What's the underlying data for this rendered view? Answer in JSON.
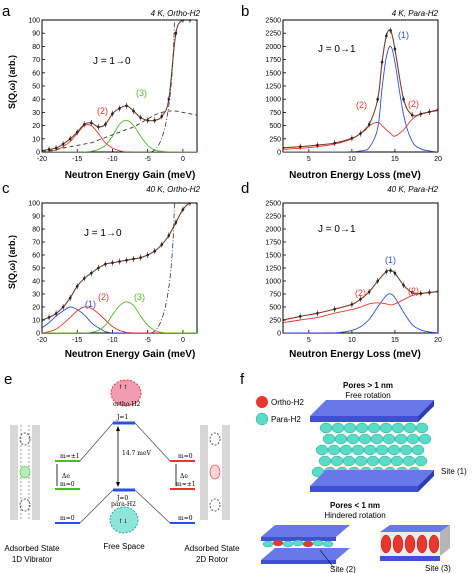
{
  "panels": {
    "a": {
      "letter": "a",
      "title": "4 K, Ortho-H2",
      "transition": "J = 1→0",
      "xlabel": "Neutron Energy Gain (meV)",
      "ylabel": "S(Q,ω) (arb.)",
      "peaks": [
        {
          "text": "(2)",
          "color": "#e8352d"
        },
        {
          "text": "(3)",
          "color": "#4dbb24"
        }
      ]
    },
    "b": {
      "letter": "b",
      "title": "4 K, Para-H2",
      "transition": "J = 0→1",
      "xlabel": "Neutron Energy Loss (meV)",
      "peaks": [
        {
          "text": "(1)",
          "color": "#2f4fe0"
        },
        {
          "text": "(2)",
          "color": "#e8352d"
        },
        {
          "text": "(2)",
          "color": "#e8352d"
        }
      ]
    },
    "c": {
      "letter": "c",
      "title": "40 K, Ortho-H2",
      "transition": "J = 1→0",
      "xlabel": "Neutron Energy Gain (meV)",
      "ylabel": "S(Q,ω) (arb.)",
      "peaks": [
        {
          "text": "(1)",
          "color": "#2f4fe0"
        },
        {
          "text": "(2)",
          "color": "#e8352d"
        },
        {
          "text": "(3)",
          "color": "#4dbb24"
        }
      ]
    },
    "d": {
      "letter": "d",
      "title": "40 K, Para-H2",
      "transition": "J = 0→1",
      "xlabel": "Neutron Energy Loss (meV)",
      "peaks": [
        {
          "text": "(1)",
          "color": "#2f4fe0"
        },
        {
          "text": "(2)",
          "color": "#e8352d"
        },
        {
          "text": "(2)",
          "color": "#e8352d"
        }
      ]
    }
  },
  "panel_e": {
    "letter": "e",
    "ortho": "ortho-H2",
    "para": "para-H2",
    "j1": "J=1",
    "j0": "J=0",
    "gap": "14.7 meV",
    "m_pm1": "m=±1",
    "m_0": "m=0",
    "delta": "Δe",
    "free_space": "Free Space",
    "left_state": "Adsorbed State",
    "left_mode": "1D Vibrator",
    "right_state": "Adsorbed State",
    "right_mode": "2D Rotor"
  },
  "panel_f": {
    "letter": "f",
    "ortho": "Ortho-H2",
    "para": "Para-H2",
    "big_pores": "Pores > 1 nm",
    "free_rot": "Free rotation",
    "small_pores": "Pores < 1 nm",
    "hindered_rot": "Hindered rotation",
    "site1": "Site (1)",
    "site2": "Site (2)",
    "site3": "Site (3)"
  },
  "colors": {
    "blue": "#2f4fe0",
    "red": "#e8352d",
    "green": "#4dbb24",
    "pink": "#f39bb0",
    "cyan": "#58dcc8",
    "slab": "#3f4fd8"
  },
  "chart_data": [
    {
      "panel": "a",
      "type": "line",
      "title": "4 K, Ortho-H2",
      "xlabel": "Neutron Energy Gain (meV)",
      "ylabel": "S(Q,ω) (arb.)",
      "xlim": [
        -20,
        2
      ],
      "ylim": [
        0,
        100
      ],
      "xticks": [
        -20,
        -15,
        -10,
        -5,
        0
      ],
      "yticks": [
        0,
        10,
        20,
        30,
        40,
        50,
        60,
        70,
        80,
        90,
        100
      ],
      "x": [
        -20,
        -19,
        -18,
        -17,
        -16,
        -15,
        -14,
        -13,
        -12,
        -11,
        -10,
        -9,
        -8,
        -7,
        -6,
        -5,
        -4,
        -3,
        -2,
        -1,
        0,
        1,
        2
      ],
      "series": [
        {
          "name": "data",
          "values": [
            1,
            2,
            3,
            6,
            10,
            15,
            21,
            22,
            19,
            21,
            29,
            33,
            35,
            31,
            26,
            24,
            24,
            27,
            40,
            90,
            100,
            100,
            100
          ]
        },
        {
          "name": "(2)",
          "values": [
            0,
            0.5,
            1.5,
            4,
            8,
            14,
            20,
            20,
            14,
            7,
            3,
            1,
            0,
            0,
            0,
            0,
            0,
            0,
            0,
            0,
            0,
            0,
            0
          ]
        },
        {
          "name": "(3)",
          "values": [
            0,
            0,
            0,
            0,
            0,
            0,
            0,
            0.5,
            2,
            5,
            12,
            21,
            24,
            20,
            12,
            5,
            1.5,
            0.5,
            0,
            0,
            0,
            0,
            0
          ]
        },
        {
          "name": "background",
          "values": [
            0.5,
            1,
            2,
            3,
            4,
            5,
            6,
            7,
            9,
            11,
            13,
            15,
            17,
            19,
            22,
            25,
            28,
            30,
            31,
            31,
            30,
            29,
            28
          ]
        }
      ]
    },
    {
      "panel": "b",
      "type": "line",
      "title": "4 K, Para-H2",
      "xlabel": "Neutron Energy Loss (meV)",
      "ylabel": "S(Q,ω) (arb.)",
      "xlim": [
        2,
        20
      ],
      "ylim": [
        0,
        2500
      ],
      "xticks": [
        5,
        10,
        15,
        20
      ],
      "yticks": [
        0,
        250,
        500,
        750,
        1000,
        1250,
        1500,
        1750,
        2000,
        2250,
        2500
      ],
      "x": [
        2,
        4,
        6,
        8,
        10,
        11,
        12,
        13,
        13.5,
        14,
        14.5,
        15,
        16,
        17,
        18,
        19,
        20
      ],
      "series": [
        {
          "name": "data",
          "values": [
            80,
            100,
            130,
            170,
            260,
            350,
            520,
            1000,
            1700,
            2200,
            2300,
            1950,
            1000,
            700,
            720,
            760,
            800
          ]
        },
        {
          "name": "(1)",
          "values": [
            0,
            0,
            0,
            0,
            5,
            20,
            80,
            450,
            1200,
            1800,
            2000,
            1700,
            700,
            200,
            60,
            20,
            0
          ]
        },
        {
          "name": "(2)",
          "values": [
            50,
            70,
            100,
            150,
            250,
            350,
            500,
            560,
            500,
            420,
            350,
            300,
            420,
            620,
            720,
            760,
            780
          ]
        }
      ]
    },
    {
      "panel": "c",
      "type": "line",
      "title": "40 K, Ortho-H2",
      "xlabel": "Neutron Energy Gain (meV)",
      "ylabel": "S(Q,ω) (arb.)",
      "xlim": [
        -20,
        2
      ],
      "ylim": [
        0,
        100
      ],
      "xticks": [
        -20,
        -15,
        -10,
        -5,
        0
      ],
      "yticks": [
        0,
        10,
        20,
        30,
        40,
        50,
        60,
        70,
        80,
        90,
        100
      ],
      "x": [
        -20,
        -19,
        -18,
        -17,
        -16,
        -15,
        -14,
        -13,
        -12,
        -11,
        -10,
        -9,
        -8,
        -7,
        -6,
        -5,
        -4,
        -3,
        -2,
        -1,
        0,
        1,
        2
      ],
      "series": [
        {
          "name": "data",
          "values": [
            10,
            12,
            15,
            20,
            27,
            36,
            42,
            46,
            50,
            53,
            54,
            55,
            56,
            57,
            58,
            60,
            63,
            68,
            75,
            85,
            95,
            100,
            100
          ]
        },
        {
          "name": "(1)",
          "values": [
            4,
            8,
            13,
            17,
            20,
            18,
            14,
            8,
            4,
            1,
            0,
            0,
            0,
            0,
            0,
            0,
            0,
            0,
            0,
            0,
            0,
            0,
            0
          ]
        },
        {
          "name": "(2)",
          "values": [
            0,
            1,
            3,
            7,
            12,
            17,
            20,
            19,
            15,
            10,
            5,
            2,
            0.5,
            0,
            0,
            0,
            0,
            0,
            0,
            0,
            0,
            0,
            0
          ]
        },
        {
          "name": "(3)",
          "values": [
            0,
            0,
            0,
            0,
            0,
            0,
            0,
            0.5,
            2,
            6,
            14,
            21,
            24,
            21,
            13,
            6,
            2,
            0.5,
            0,
            0,
            0,
            0,
            0
          ]
        }
      ]
    },
    {
      "panel": "d",
      "type": "line",
      "title": "40 K, Para-H2",
      "xlabel": "Neutron Energy Loss (meV)",
      "ylabel": "S(Q,ω) (arb.)",
      "xlim": [
        2,
        20
      ],
      "ylim": [
        0,
        2500
      ],
      "xticks": [
        5,
        10,
        15,
        20
      ],
      "yticks": [
        0,
        250,
        500,
        750,
        1000,
        1250,
        1500,
        1750,
        2000,
        2250,
        2500
      ],
      "x": [
        2,
        4,
        6,
        8,
        10,
        11,
        12,
        13,
        14,
        14.5,
        15,
        16,
        17,
        18,
        19,
        20
      ],
      "series": [
        {
          "name": "data",
          "values": [
            250,
            320,
            380,
            460,
            550,
            650,
            790,
            1000,
            1180,
            1200,
            1150,
            920,
            780,
            760,
            780,
            800
          ]
        },
        {
          "name": "(1)",
          "values": [
            0,
            0,
            0,
            0,
            50,
            120,
            260,
            500,
            720,
            750,
            680,
            400,
            160,
            60,
            20,
            0
          ]
        },
        {
          "name": "(2)",
          "values": [
            200,
            250,
            300,
            380,
            450,
            500,
            560,
            580,
            560,
            540,
            560,
            640,
            720,
            760,
            780,
            790
          ]
        }
      ]
    }
  ]
}
